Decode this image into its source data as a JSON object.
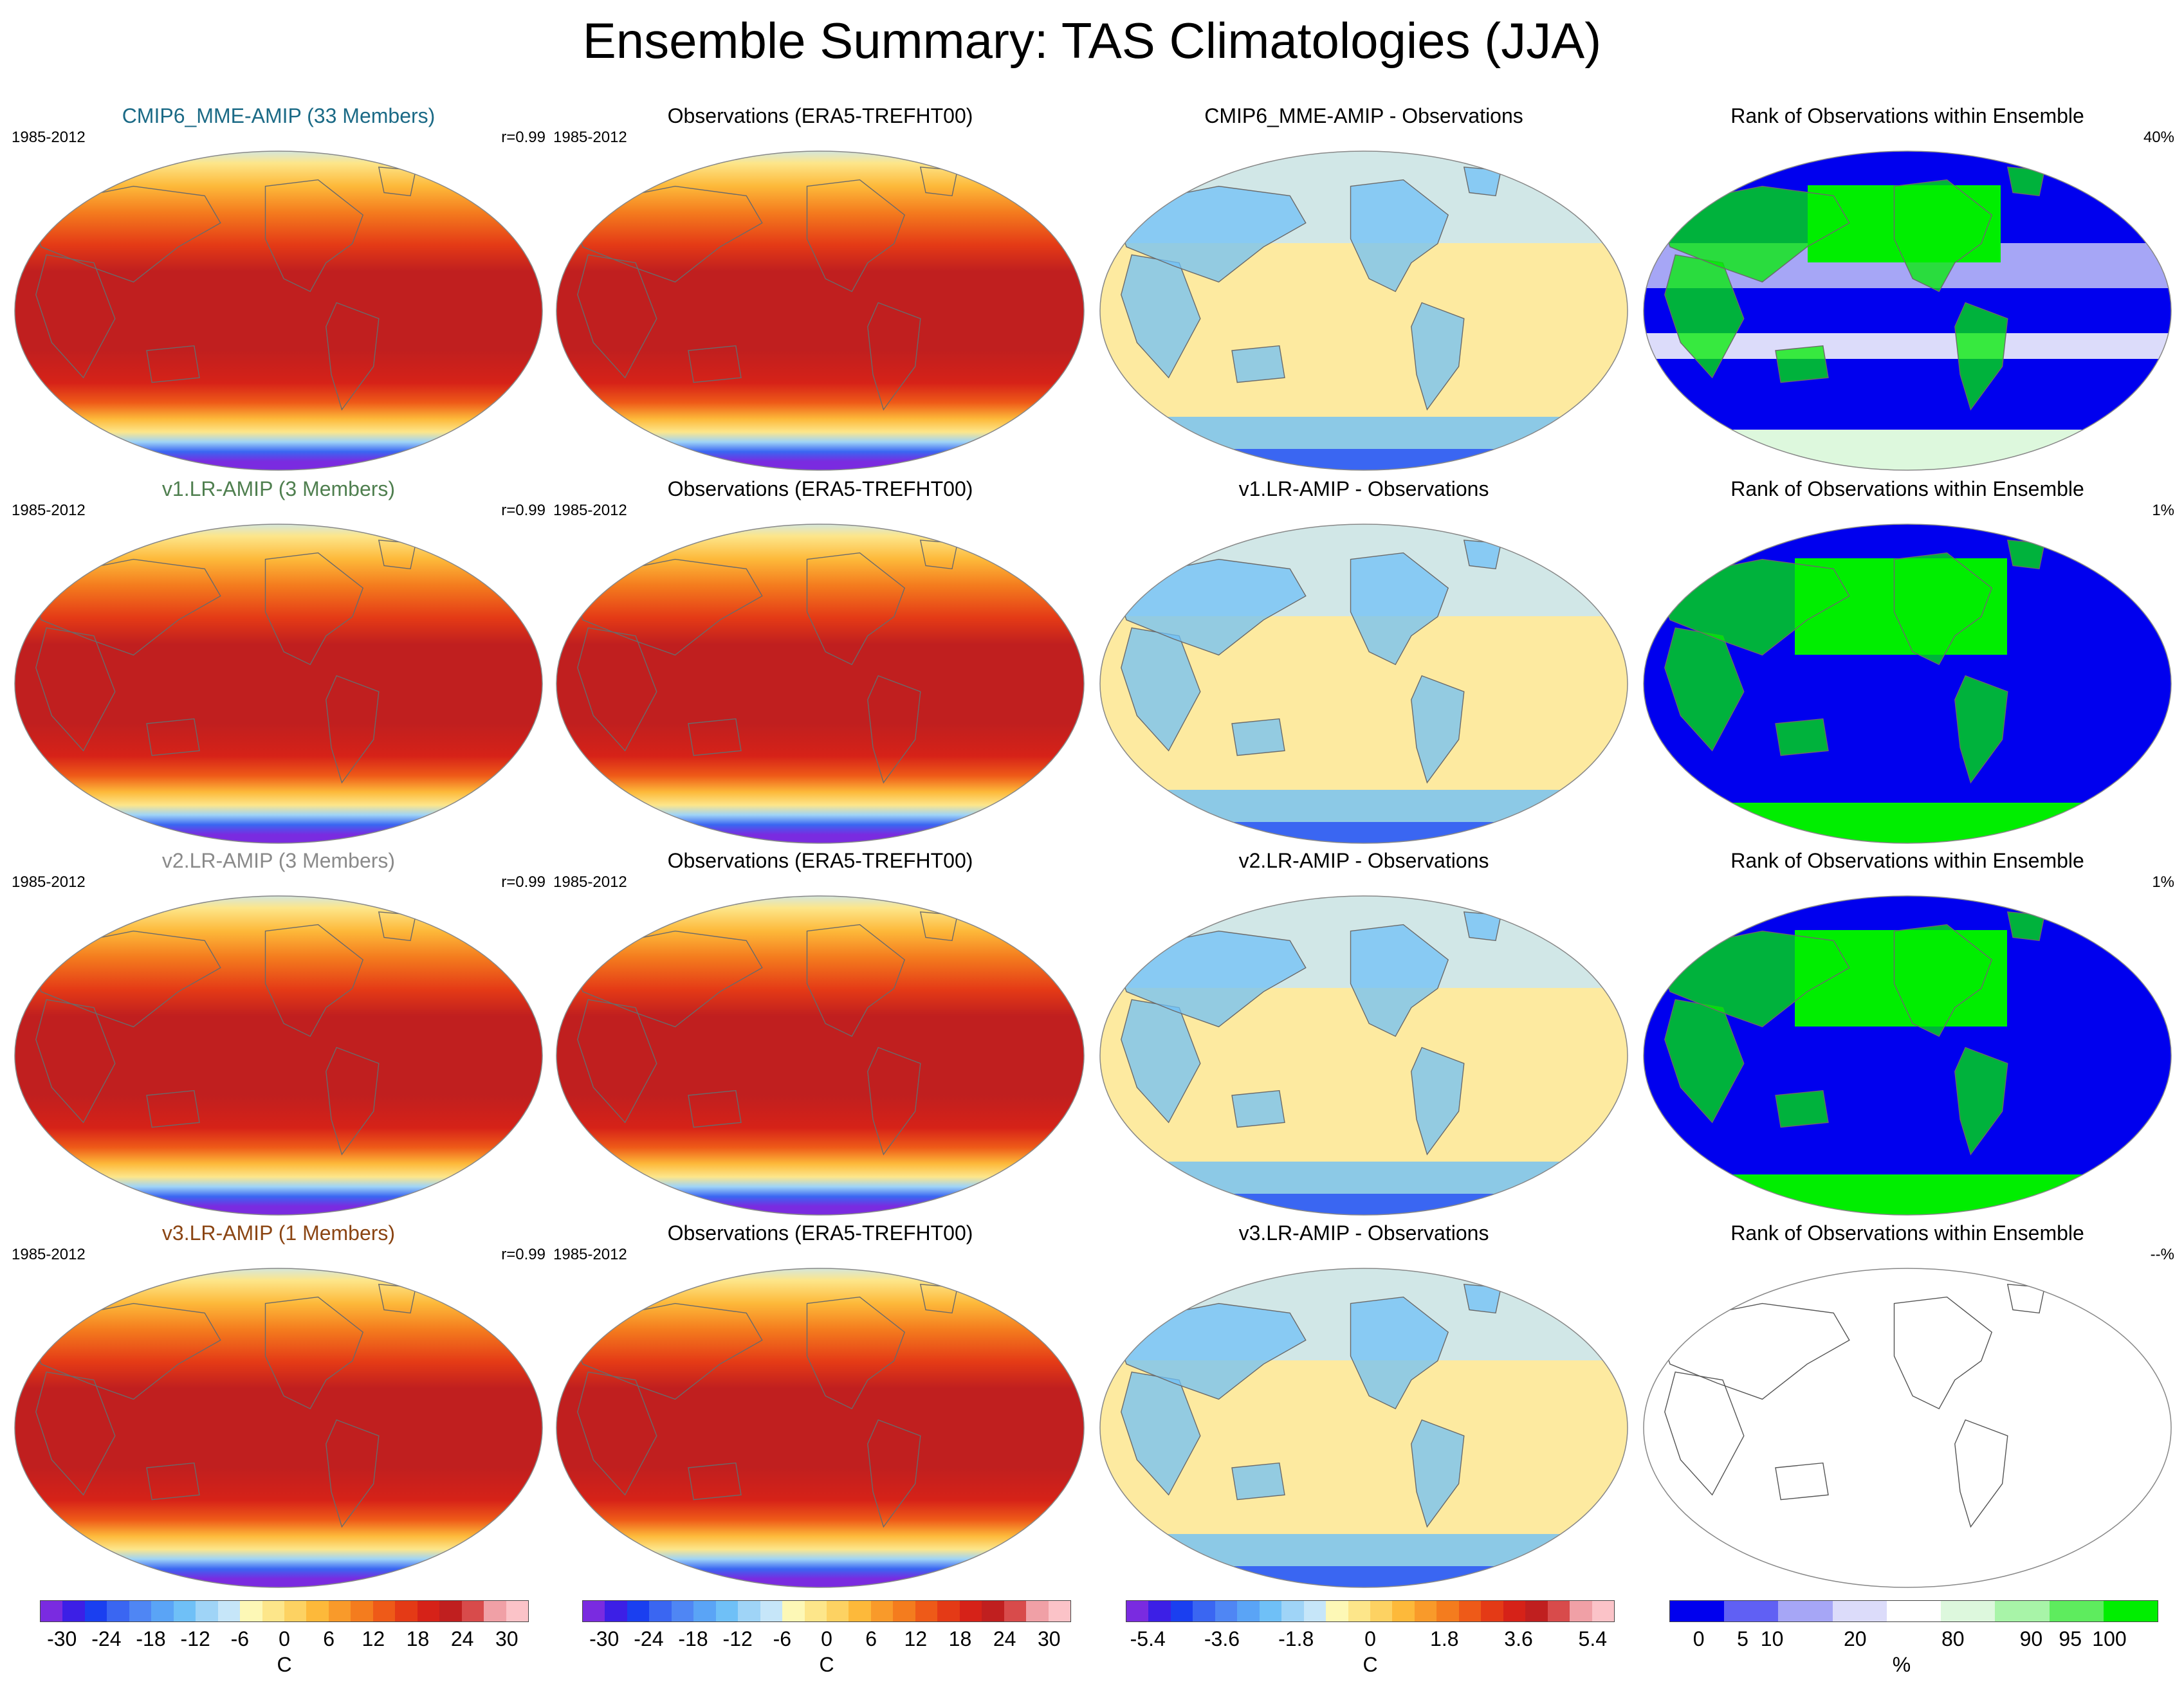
{
  "title": "Ensemble Summary: TAS Climatologies (JJA)",
  "colors": {
    "temp_ramp": [
      "#7a2be0",
      "#3c1fe6",
      "#1a3ff0",
      "#3a66f2",
      "#4f86f4",
      "#5aa4f6",
      "#6fc0f7",
      "#9fd4f7",
      "#c6e6f9",
      "#fdf8b6",
      "#fde68a",
      "#fdd262",
      "#fdb93a",
      "#f99a2a",
      "#f47c1e",
      "#ee5a18",
      "#e43a16",
      "#d62218",
      "#c01f1f",
      "#d84b4b",
      "#f0a0a6",
      "#fbc3c8"
    ],
    "rank_ramp": [
      "#0000ee",
      "#6060f4",
      "#a6a6f6",
      "#dcdcfa",
      "#ffffff",
      "#ddf8dd",
      "#a8f4a8",
      "#5eec5e",
      "#00ee00"
    ]
  },
  "rows": [
    {
      "model": {
        "title": "CMIP6_MME-AMIP (33 Members)",
        "title_color": "#1b6a86",
        "period": "1985-2012",
        "corr": "r=0.99"
      },
      "obs": {
        "title": "Observations (ERA5-TREFHT00)",
        "period": "1985-2012"
      },
      "diff": {
        "title": "CMIP6_MME-AMIP - Observations"
      },
      "rank": {
        "title": "Rank of Observations within Ensemble",
        "pct": "40%",
        "style": "mixed"
      }
    },
    {
      "model": {
        "title": "v1.LR-AMIP (3 Members)",
        "title_color": "#4f7f4f",
        "period": "1985-2012",
        "corr": "r=0.99"
      },
      "obs": {
        "title": "Observations (ERA5-TREFHT00)",
        "period": "1985-2012"
      },
      "diff": {
        "title": "v1.LR-AMIP - Observations"
      },
      "rank": {
        "title": "Rank of Observations within Ensemble",
        "pct": "1%",
        "style": "bimodal"
      }
    },
    {
      "model": {
        "title": "v2.LR-AMIP (3 Members)",
        "title_color": "#8a8a8a",
        "period": "1985-2012",
        "corr": "r=0.99"
      },
      "obs": {
        "title": "Observations (ERA5-TREFHT00)",
        "period": "1985-2012"
      },
      "diff": {
        "title": "v2.LR-AMIP - Observations"
      },
      "rank": {
        "title": "Rank of Observations within Ensemble",
        "pct": "1%",
        "style": "bimodal"
      }
    },
    {
      "model": {
        "title": "v3.LR-AMIP (1 Members)",
        "title_color": "#8b4513",
        "period": "1985-2012",
        "corr": "r=0.99"
      },
      "obs": {
        "title": "Observations (ERA5-TREFHT00)",
        "period": "1985-2012"
      },
      "diff": {
        "title": "v3.LR-AMIP - Observations"
      },
      "rank": {
        "title": "Rank of Observations within Ensemble",
        "pct": "--%",
        "style": "empty"
      }
    }
  ],
  "colorbars": [
    {
      "ticks": [
        "-30",
        "-24",
        "-18",
        "-12",
        "-6",
        "0",
        "6",
        "12",
        "18",
        "24",
        "30"
      ],
      "unit": "C"
    },
    {
      "ticks": [
        "-30",
        "-24",
        "-18",
        "-12",
        "-6",
        "0",
        "6",
        "12",
        "18",
        "24",
        "30"
      ],
      "unit": "C"
    },
    {
      "ticks": [
        "-5.4",
        "-3.6",
        "-1.8",
        "0",
        "1.8",
        "3.6",
        "5.4"
      ],
      "unit": "C"
    },
    {
      "ticks": [
        "0",
        "5",
        "10",
        "20",
        "80",
        "90",
        "95",
        "100"
      ],
      "unit": "%"
    }
  ]
}
